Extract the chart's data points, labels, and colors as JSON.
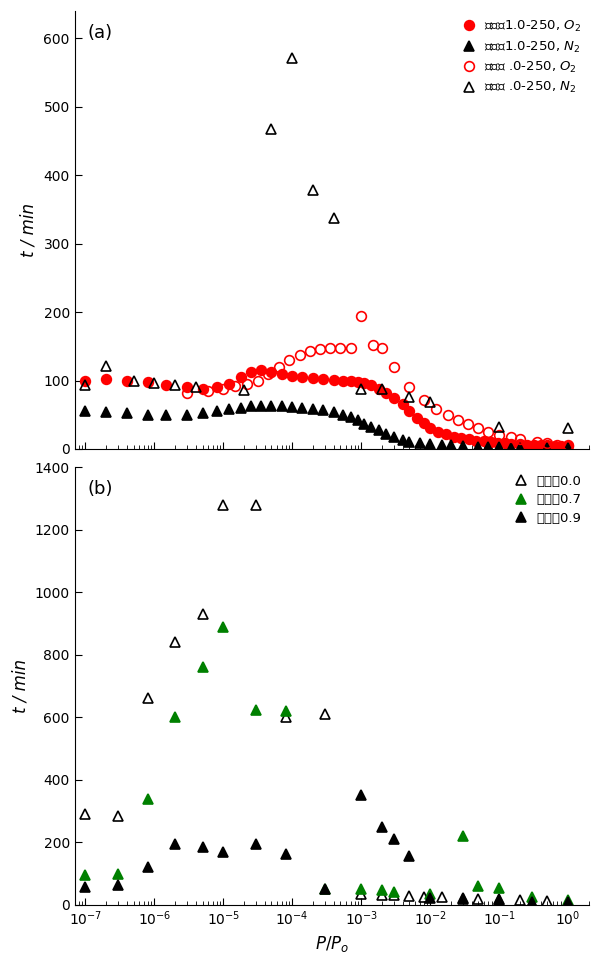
{
  "panel_a": {
    "title": "(a)",
    "ylabel": "t / min",
    "ylim": [
      0,
      640
    ],
    "yticks": [
      0,
      100,
      200,
      300,
      400,
      500,
      600
    ],
    "series": [
      {
        "label": "活性灹1.0-250, $O_2$",
        "color": "red",
        "marker": "o",
        "filled": true,
        "x": [
          1e-07,
          2e-07,
          4e-07,
          8e-07,
          1.5e-06,
          3e-06,
          5e-06,
          8e-06,
          1.2e-05,
          1.8e-05,
          2.5e-05,
          3.5e-05,
          5e-05,
          7e-05,
          0.0001,
          0.00014,
          0.0002,
          0.00028,
          0.0004,
          0.00055,
          0.0007,
          0.0009,
          0.0011,
          0.0014,
          0.0018,
          0.0023,
          0.003,
          0.004,
          0.005,
          0.0065,
          0.008,
          0.01,
          0.013,
          0.017,
          0.022,
          0.028,
          0.036,
          0.046,
          0.06,
          0.075,
          0.095,
          0.12,
          0.15,
          0.2,
          0.25,
          0.32,
          0.4,
          0.5,
          0.65,
          0.8,
          1.0
        ],
        "y": [
          100,
          102,
          100,
          98,
          94,
          90,
          88,
          90,
          95,
          105,
          112,
          115,
          113,
          110,
          107,
          105,
          103,
          102,
          101,
          100,
          99,
          98,
          96,
          93,
          88,
          82,
          75,
          65,
          55,
          45,
          38,
          30,
          25,
          22,
          18,
          16,
          14,
          12,
          11,
          10,
          9,
          8,
          7,
          7,
          6,
          6,
          5,
          5,
          4,
          4,
          4
        ]
      },
      {
        "label": "活性灹1.0-250, $N_2$",
        "color": "black",
        "marker": "^",
        "filled": true,
        "x": [
          1e-07,
          2e-07,
          4e-07,
          8e-07,
          1.5e-06,
          3e-06,
          5e-06,
          8e-06,
          1.2e-05,
          1.8e-05,
          2.5e-05,
          3.5e-05,
          5e-05,
          7e-05,
          0.0001,
          0.00014,
          0.0002,
          0.00028,
          0.0004,
          0.00055,
          0.0007,
          0.0009,
          0.0011,
          0.0014,
          0.0018,
          0.0023,
          0.003,
          0.004,
          0.005,
          0.007,
          0.01,
          0.015,
          0.02,
          0.03,
          0.05,
          0.07,
          0.1,
          0.15,
          0.2,
          0.5,
          1.0
        ],
        "y": [
          56,
          54,
          52,
          50,
          49,
          50,
          52,
          55,
          58,
          60,
          62,
          63,
          63,
          62,
          61,
          60,
          59,
          57,
          54,
          50,
          46,
          42,
          37,
          32,
          27,
          22,
          17,
          13,
          10,
          8,
          7,
          6,
          5,
          4,
          3,
          3,
          3,
          2,
          2,
          2,
          2
        ]
      },
      {
        "label": "活性炳 .0-250, $O_2$",
        "color": "red",
        "marker": "o",
        "filled": false,
        "x": [
          3e-06,
          6e-06,
          1e-05,
          1.5e-05,
          2.2e-05,
          3.2e-05,
          4.5e-05,
          6.5e-05,
          9e-05,
          0.00013,
          0.00018,
          0.00025,
          0.00035,
          0.0005,
          0.0007,
          0.001,
          0.0015,
          0.002,
          0.003,
          0.005,
          0.008,
          0.012,
          0.018,
          0.025,
          0.035,
          0.05,
          0.07,
          0.1,
          0.15,
          0.2,
          0.35,
          0.5,
          0.7,
          1.0
        ],
        "y": [
          82,
          85,
          88,
          92,
          95,
          100,
          110,
          120,
          130,
          138,
          143,
          146,
          148,
          148,
          148,
          195,
          152,
          148,
          120,
          90,
          72,
          58,
          50,
          42,
          36,
          30,
          25,
          20,
          17,
          14,
          10,
          8,
          6,
          5
        ]
      },
      {
        "label": "活性炳 .0-250, $N_2$",
        "color": "black",
        "marker": "^",
        "filled": false,
        "x": [
          1e-07,
          2e-07,
          5e-07,
          1e-06,
          2e-06,
          4e-06,
          2e-05,
          5e-05,
          0.0001,
          0.0002,
          0.0004,
          0.001,
          0.002,
          0.005,
          0.01,
          0.1,
          1.0
        ],
        "y": [
          93,
          121,
          100,
          96,
          93,
          91,
          86,
          467,
          572,
          378,
          338,
          88,
          88,
          76,
          68,
          32,
          30
        ]
      }
    ]
  },
  "panel_b": {
    "title": "(b)",
    "ylabel": "t / min",
    "xlabel": "$P/P_o$",
    "ylim": [
      0,
      1400
    ],
    "yticks": [
      0,
      200,
      400,
      600,
      800,
      1000,
      1200,
      1400
    ],
    "series": [
      {
        "label": "其他炳0.0",
        "color": "black",
        "marker": "^",
        "filled": false,
        "x": [
          1e-07,
          3e-07,
          8e-07,
          2e-06,
          5e-06,
          1e-05,
          3e-05,
          8e-05,
          0.0003,
          0.001,
          0.002,
          0.003,
          0.005,
          0.008,
          0.015,
          0.03,
          0.05,
          0.1,
          0.2,
          0.5,
          1.0
        ],
        "y": [
          290,
          285,
          660,
          840,
          930,
          1280,
          1280,
          600,
          610,
          35,
          33,
          30,
          28,
          26,
          24,
          22,
          20,
          18,
          15,
          12,
          10
        ]
      },
      {
        "label": "其他炳0.7",
        "color": "green",
        "marker": "^",
        "filled": true,
        "x": [
          1e-07,
          3e-07,
          8e-07,
          2e-06,
          5e-06,
          1e-05,
          3e-05,
          8e-05,
          0.0003,
          0.001,
          0.002,
          0.003,
          0.01,
          0.03,
          0.05,
          0.1,
          0.3,
          1.0
        ],
        "y": [
          95,
          100,
          340,
          600,
          760,
          890,
          622,
          620,
          50,
          50,
          46,
          42,
          35,
          220,
          60,
          55,
          25,
          15
        ]
      },
      {
        "label": "其他炳0.9",
        "color": "black",
        "marker": "^",
        "filled": true,
        "x": [
          1e-07,
          3e-07,
          8e-07,
          2e-06,
          5e-06,
          1e-05,
          3e-05,
          8e-05,
          0.0003,
          0.001,
          0.002,
          0.003,
          0.005,
          0.01,
          0.03,
          0.1,
          0.3,
          1.0
        ],
        "y": [
          58,
          65,
          120,
          195,
          185,
          168,
          195,
          163,
          50,
          350,
          250,
          210,
          155,
          22,
          20,
          15,
          10,
          8
        ]
      }
    ]
  },
  "xtick_positions": [
    1e-07,
    1e-06,
    1e-05,
    0.0001,
    0.001,
    0.01,
    0.1,
    1.0
  ],
  "xtick_labels": [
    "$10^{-7}$",
    "$10^{-6}$",
    "$10^{-5}$",
    "$10^{-4}$",
    "$10^{-3}$",
    "$10^{-2}$",
    "$10^{-1}$",
    "$10^{0}$"
  ]
}
